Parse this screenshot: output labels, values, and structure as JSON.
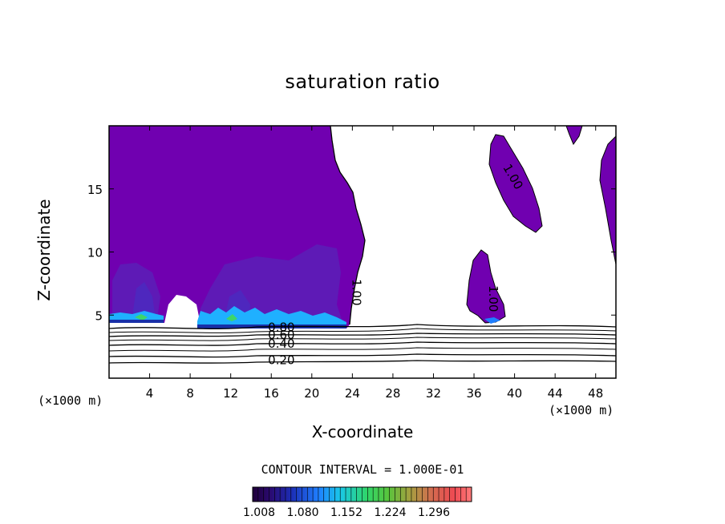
{
  "chart_data": {
    "type": "contour",
    "title": "saturation ratio",
    "xlabel": "X-coordinate",
    "ylabel": "Z-coordinate",
    "x_unit": "(×1000 m)",
    "z_unit": "(×1000 m)",
    "xlim": [
      0,
      50
    ],
    "ylim": [
      0,
      20
    ],
    "x_ticks": [
      4,
      8,
      12,
      16,
      20,
      24,
      28,
      32,
      36,
      40,
      44,
      48
    ],
    "y_ticks": [
      5,
      10,
      15
    ],
    "contour_interval": "CONTOUR INTERVAL = 1.000E-01",
    "contour_labels": [
      {
        "text": "1.00",
        "x": 24.0,
        "z": 6.8
      },
      {
        "text": "1.00",
        "x": 39.5,
        "z": 15.8
      },
      {
        "text": "1.00",
        "x": 37.5,
        "z": 6.3
      },
      {
        "text": "0.80",
        "x": 17.0,
        "z": 3.7
      },
      {
        "text": "0.60",
        "x": 17.0,
        "z": 3.1
      },
      {
        "text": "0.40",
        "x": 17.0,
        "z": 2.4
      },
      {
        "text": "0.20",
        "x": 17.0,
        "z": 1.1
      }
    ],
    "colorbar_ticks": [
      "1.008",
      "1.080",
      "1.152",
      "1.224",
      "1.296"
    ],
    "colors": {
      "supersaturated_fill": "#7000b0",
      "high_fill": "#5a1fb6",
      "cyan": "#1fb0ff",
      "green": "#3dd66a"
    }
  }
}
